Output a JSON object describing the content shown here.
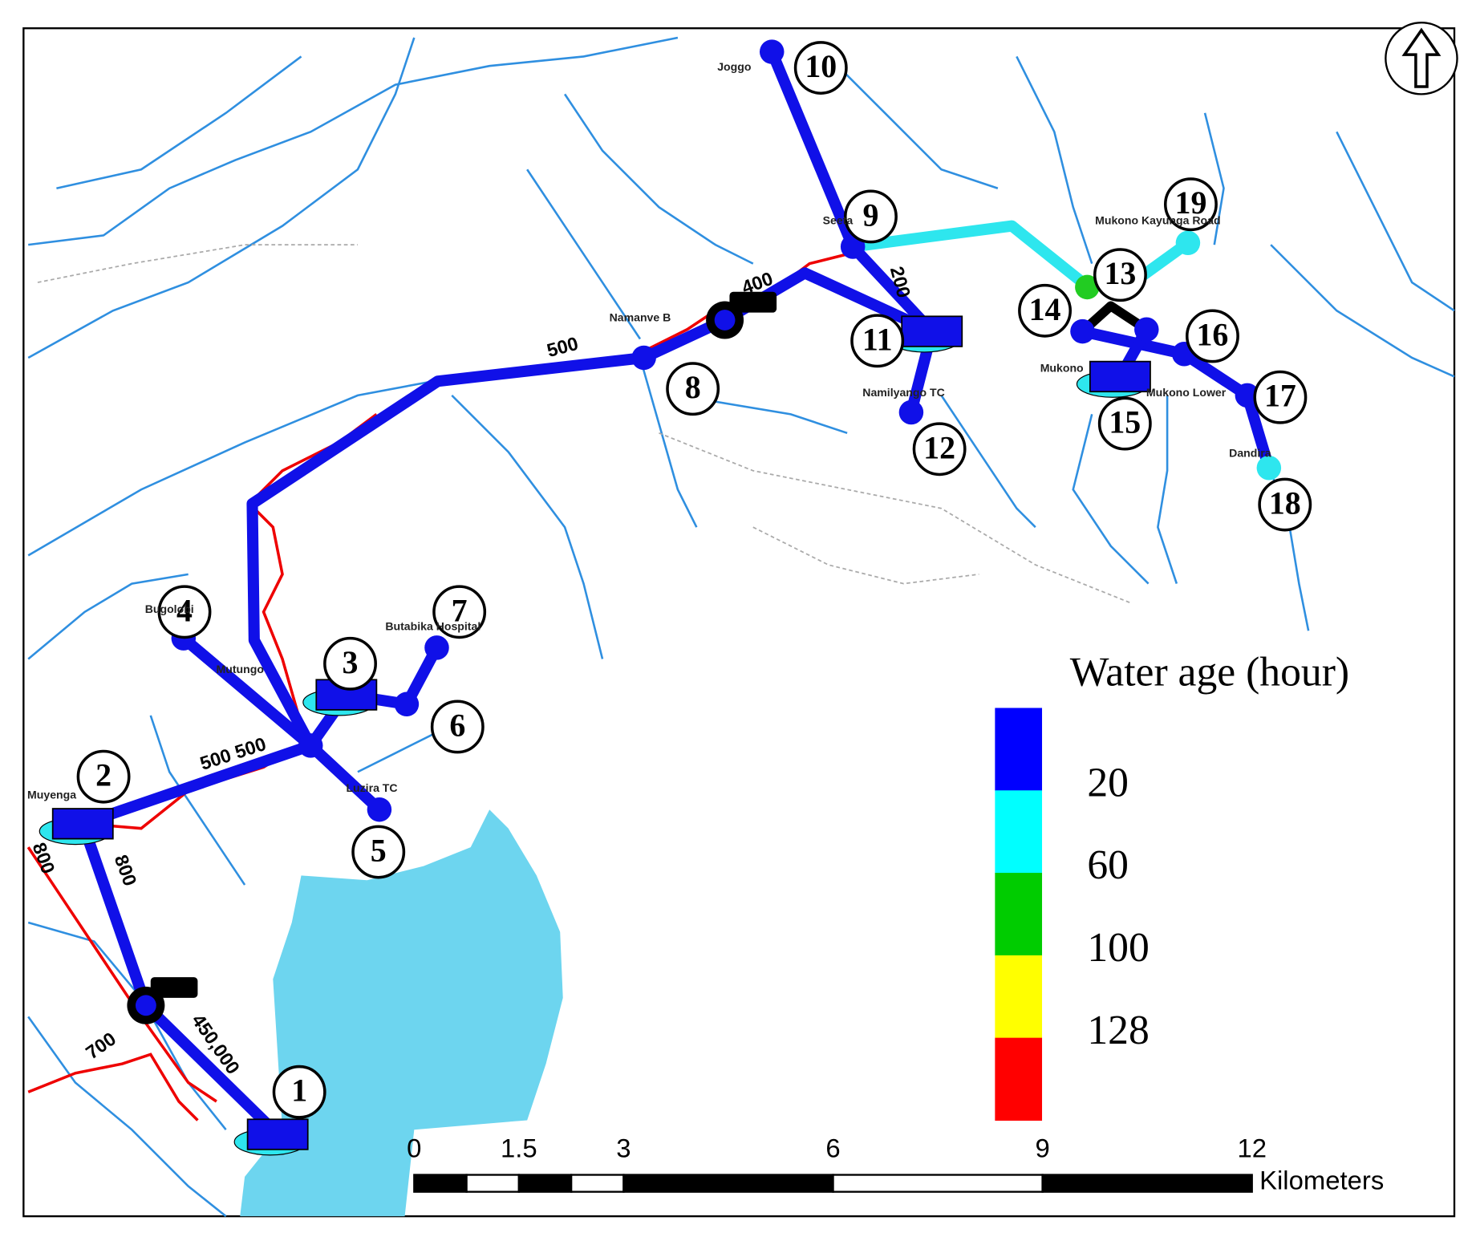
{
  "nodes": [
    "1",
    "2",
    "3",
    "4",
    "5",
    "6",
    "7",
    "8",
    "9",
    "10",
    "11",
    "12",
    "13",
    "14",
    "15",
    "16",
    "17",
    "18",
    "19"
  ],
  "places": [
    "Joggo",
    "Seeta",
    "Namanve B",
    "Mukono Kayunga Road",
    "Namilyango TC",
    "Mukono",
    "Mukono Lower",
    "Dandira",
    "Butabika Hospital",
    "Luzira TC",
    "Mutungo",
    "Bugolobi",
    "Muyenga"
  ],
  "pipe_labels": [
    "500",
    "400",
    "200",
    "500 500",
    "800",
    "450,000",
    "700",
    "800"
  ],
  "legend": {
    "title": "Water age (hour)",
    "labels": [
      "20",
      "60",
      "100",
      "128"
    ],
    "colors": [
      "#0000ff",
      "#00ffff",
      "#00cc00",
      "#ffff00",
      "#ff0000"
    ]
  },
  "scale_bar": {
    "labels": [
      "0",
      "1.5",
      "3",
      "6",
      "9",
      "12"
    ],
    "unit": "Kilometers"
  }
}
